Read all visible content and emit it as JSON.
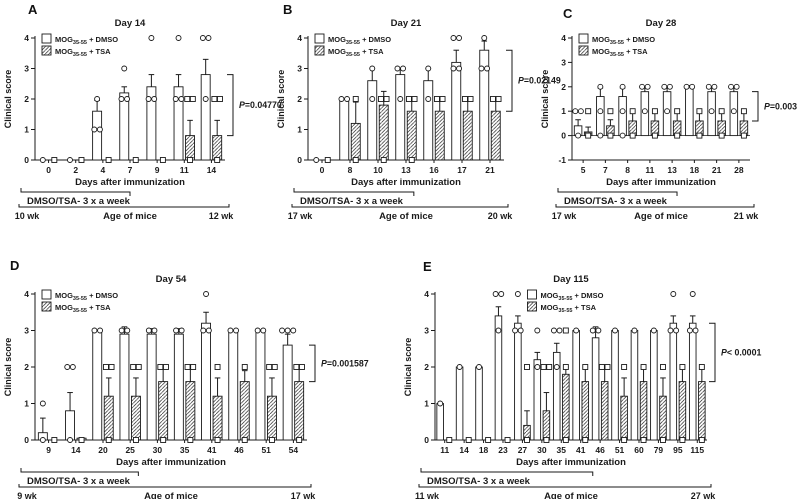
{
  "figure": {
    "ylabel": "Clinical score",
    "xlabel": "Days after immunization",
    "treatment_label": "DMSO/TSA- 3 x a week",
    "age_label": "Age of mice",
    "colors": {
      "ink": "#1a1a1a",
      "bar_open_fill": "#ffffff",
      "bar_hatch": "diagonal-lines"
    },
    "legend": [
      {
        "base": "MOG",
        "sub": "35-55",
        "rest": " + DMSO",
        "swatch": "open",
        "marker": "circle"
      },
      {
        "base": "MOG",
        "sub": "35-55",
        "rest": " + TSA",
        "swatch": "hatch",
        "marker": "square"
      }
    ]
  },
  "chart_data": [
    {
      "panel": "A",
      "type": "bar",
      "title": "Day 14",
      "ylim": [
        0,
        4
      ],
      "yticks": [
        0,
        1,
        2,
        3,
        4
      ],
      "categories": [
        "0",
        "2",
        "4",
        "7",
        "9",
        "11",
        "14"
      ],
      "series": [
        {
          "name": "MOG35-55 + DMSO",
          "marker": "circle",
          "fill": "open",
          "values": [
            0,
            0,
            1.6,
            2.2,
            2.4,
            2.4,
            2.8
          ],
          "errors": [
            0,
            0,
            0.35,
            0.2,
            0.4,
            0.4,
            0.5
          ],
          "points": [
            [
              0
            ],
            [
              0
            ],
            [
              1,
              1,
              2
            ],
            [
              2,
              2,
              3
            ],
            [
              2,
              2,
              4
            ],
            [
              2,
              2,
              4
            ],
            [
              2,
              4,
              4
            ]
          ]
        },
        {
          "name": "MOG35-55 + TSA",
          "marker": "square",
          "fill": "hatch",
          "values": [
            0,
            0,
            0,
            0,
            0,
            0.8,
            0.8
          ],
          "errors": [
            0,
            0,
            0,
            0,
            0,
            0.5,
            0.5
          ],
          "points": [
            [
              0
            ],
            [
              0
            ],
            [
              0
            ],
            [
              0
            ],
            [
              0
            ],
            [
              0,
              2,
              2
            ],
            [
              0,
              2,
              2
            ]
          ]
        }
      ],
      "p_value": {
        "sym": "P",
        "rest": "=0.04770"
      },
      "treatment_end_frac": 0.5,
      "age": {
        "left": "10 wk",
        "right": "12 wk"
      },
      "legend_pos": "left"
    },
    {
      "panel": "B",
      "type": "bar",
      "title": "Day 21",
      "ylim": [
        0,
        4
      ],
      "yticks": [
        0,
        1,
        2,
        3,
        4
      ],
      "categories": [
        "0",
        "8",
        "10",
        "13",
        "16",
        "17",
        "21"
      ],
      "series": [
        {
          "name": "MOG35-55 + DMSO",
          "marker": "circle",
          "fill": "open",
          "values": [
            0,
            2.0,
            2.6,
            2.8,
            2.6,
            3.2,
            3.6
          ],
          "errors": [
            0,
            0,
            0.4,
            0.2,
            0.4,
            0.4,
            0.3
          ],
          "points": [
            [
              0
            ],
            [
              2,
              2
            ],
            [
              2,
              3
            ],
            [
              2,
              3,
              3
            ],
            [
              2,
              3
            ],
            [
              3,
              3,
              4,
              4
            ],
            [
              3,
              3,
              4
            ]
          ]
        },
        {
          "name": "MOG35-55 + TSA",
          "marker": "square",
          "fill": "hatch",
          "values": [
            0,
            1.2,
            1.8,
            1.6,
            1.6,
            1.6,
            1.6
          ],
          "errors": [
            0,
            0.7,
            0.45,
            0.4,
            0.4,
            0.4,
            0.4
          ],
          "points": [
            [
              0
            ],
            [
              0,
              2
            ],
            [
              0,
              2,
              2
            ],
            [
              0,
              2,
              2
            ],
            [
              2,
              2
            ],
            [
              2,
              2
            ],
            [
              2,
              2
            ]
          ]
        }
      ],
      "p_value": {
        "sym": "P",
        "rest": "=0.02149"
      },
      "treatment_end_frac": 0.54,
      "age": {
        "left": "17 wk",
        "right": "20 wk"
      },
      "legend_pos": "left"
    },
    {
      "panel": "C",
      "type": "bar",
      "title": "Day 28",
      "ylim": [
        -1,
        4
      ],
      "yticks": [
        -1,
        0,
        1,
        2,
        3,
        4
      ],
      "categories": [
        "5",
        "7",
        "8",
        "11",
        "13",
        "18",
        "21",
        "28"
      ],
      "series": [
        {
          "name": "MOG35-55 + DMSO",
          "marker": "circle",
          "fill": "open",
          "values": [
            0.4,
            1.6,
            1.6,
            1.8,
            1.8,
            2.0,
            1.8,
            1.8
          ],
          "errors": [
            0.25,
            0.35,
            0.35,
            0.2,
            0.2,
            0.05,
            0.2,
            0.2
          ],
          "points": [
            [
              0,
              1,
              1
            ],
            [
              0,
              1,
              2
            ],
            [
              0,
              1,
              2
            ],
            [
              1,
              2,
              2
            ],
            [
              1,
              2,
              2
            ],
            [
              2,
              2
            ],
            [
              1,
              2,
              2
            ],
            [
              1,
              2,
              2
            ]
          ]
        },
        {
          "name": "MOG35-55 + TSA",
          "marker": "square",
          "fill": "hatch",
          "values": [
            0.15,
            0.4,
            0.6,
            0.6,
            0.6,
            0.6,
            0.6,
            0.6
          ],
          "errors": [
            0.2,
            0.25,
            0.4,
            0.4,
            0.4,
            0.4,
            0.4,
            0.4
          ],
          "points": [
            [
              0,
              1
            ],
            [
              0,
              1
            ],
            [
              0,
              1
            ],
            [
              0,
              1
            ],
            [
              0,
              1
            ],
            [
              0,
              1
            ],
            [
              0,
              1
            ],
            [
              0,
              1
            ]
          ]
        }
      ],
      "p_value": {
        "sym": "P",
        "rest": "=0.003"
      },
      "treatment_end_frac": 0.59,
      "age": {
        "left": "17 wk",
        "right": "21 wk"
      },
      "legend_pos": "left"
    },
    {
      "panel": "D",
      "type": "bar",
      "title": "Day 54",
      "ylim": [
        0,
        4
      ],
      "yticks": [
        0,
        1,
        2,
        3,
        4
      ],
      "categories": [
        "9",
        "14",
        "20",
        "25",
        "30",
        "35",
        "41",
        "46",
        "51",
        "54"
      ],
      "series": [
        {
          "name": "MOG35-55 + DMSO",
          "marker": "circle",
          "fill": "open",
          "values": [
            0.2,
            0.8,
            3.0,
            2.9,
            2.9,
            2.9,
            3.2,
            3.0,
            3.0,
            2.6
          ],
          "errors": [
            0.4,
            0.5,
            0,
            0.2,
            0.15,
            0.15,
            0.3,
            0,
            0,
            0.3
          ],
          "points": [
            [
              0,
              1
            ],
            [
              0,
              2,
              2
            ],
            [
              3,
              3
            ],
            [
              3,
              3
            ],
            [
              3,
              3
            ],
            [
              3,
              3
            ],
            [
              3,
              3,
              4
            ],
            [
              3,
              3
            ],
            [
              3,
              3
            ],
            [
              3,
              3,
              3
            ]
          ]
        },
        {
          "name": "MOG35-55 + TSA",
          "marker": "square",
          "fill": "hatch",
          "values": [
            0,
            0.05,
            1.2,
            1.2,
            1.6,
            1.6,
            1.2,
            1.6,
            1.2,
            1.6
          ],
          "errors": [
            0,
            0,
            0.5,
            0.5,
            0.45,
            0.45,
            0.5,
            0.3,
            0.5,
            0.4
          ],
          "points": [
            [
              0
            ],
            [
              0
            ],
            [
              0,
              2,
              2
            ],
            [
              0,
              2,
              2
            ],
            [
              0,
              2,
              2
            ],
            [
              0,
              2,
              2
            ],
            [
              0,
              2
            ],
            [
              0,
              2
            ],
            [
              0,
              2,
              2
            ],
            [
              0,
              2,
              2
            ]
          ]
        }
      ],
      "p_value": {
        "sym": "P",
        "rest": "=0.001587"
      },
      "treatment_end_frac": 0.38,
      "age": {
        "left": "9 wk",
        "right": "17 wk"
      },
      "legend_pos": "left"
    },
    {
      "panel": "E",
      "type": "bar",
      "title": "Day 115",
      "ylim": [
        0,
        4
      ],
      "yticks": [
        0,
        1,
        2,
        3,
        4
      ],
      "categories": [
        "11",
        "14",
        "18",
        "23",
        "27",
        "30",
        "35",
        "41",
        "46",
        "51",
        "60",
        "79",
        "95",
        "115"
      ],
      "series": [
        {
          "name": "MOG35-55 + DMSO",
          "marker": "circle",
          "fill": "open",
          "values": [
            1.0,
            2.0,
            2.0,
            3.4,
            3.2,
            2.2,
            2.4,
            3.0,
            2.8,
            3.0,
            3.0,
            3.0,
            3.2,
            3.2
          ],
          "errors": [
            0,
            0,
            0,
            0.25,
            0.2,
            0.2,
            0.25,
            0,
            0.3,
            0,
            0,
            0,
            0.2,
            0.2
          ],
          "points": [
            [
              1
            ],
            [
              2
            ],
            [
              2
            ],
            [
              3,
              4,
              4
            ],
            [
              3,
              3,
              4
            ],
            [
              2,
              3
            ],
            [
              2,
              3,
              3
            ],
            [
              3
            ],
            [
              3,
              3
            ],
            [
              3
            ],
            [
              3
            ],
            [
              3
            ],
            [
              3,
              3,
              4
            ],
            [
              3,
              3,
              4
            ]
          ]
        },
        {
          "name": "MOG35-55 + TSA",
          "marker": "square",
          "fill": "hatch",
          "values": [
            0,
            0,
            0,
            0,
            0.4,
            0.8,
            1.8,
            1.6,
            1.6,
            1.2,
            1.6,
            1.2,
            1.6,
            1.6
          ],
          "errors": [
            0,
            0,
            0,
            0,
            0.4,
            0.5,
            0.2,
            0.4,
            0.4,
            0.5,
            0.4,
            0.5,
            0.4,
            0.4
          ],
          "points": [
            [
              0
            ],
            [
              0
            ],
            [
              0
            ],
            [
              0
            ],
            [
              0,
              2
            ],
            [
              0,
              2,
              2
            ],
            [
              0,
              2,
              3
            ],
            [
              0,
              2
            ],
            [
              2,
              2
            ],
            [
              0,
              2
            ],
            [
              0,
              2
            ],
            [
              0,
              2
            ],
            [
              0,
              2
            ],
            [
              0,
              2
            ]
          ]
        }
      ],
      "p_value": {
        "sym": "P",
        "rest": "< 0.0001"
      },
      "treatment_end_frac": 0.58,
      "age": {
        "left": "11 wk",
        "right": "27 wk"
      },
      "legend_pos": "center"
    }
  ]
}
